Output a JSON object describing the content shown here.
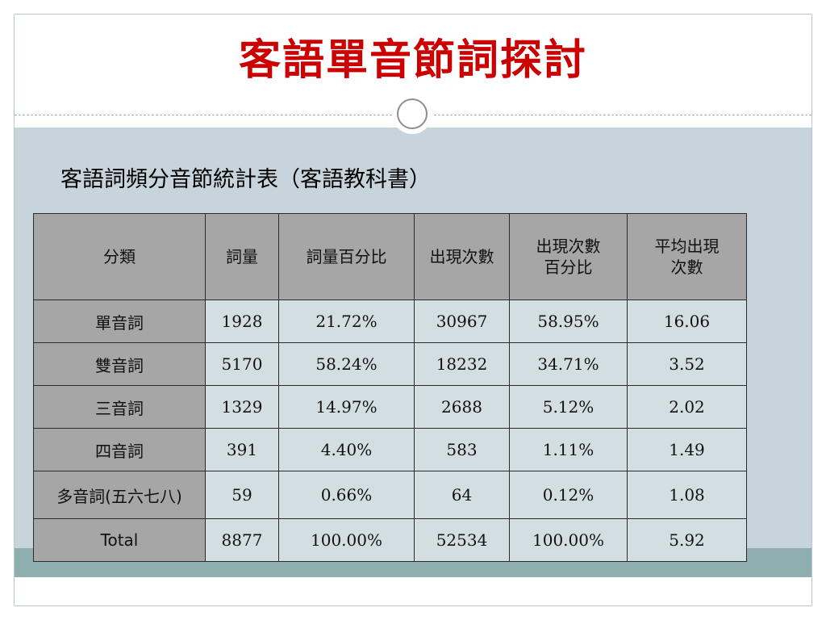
{
  "slide": {
    "title": "客語單音節詞探討",
    "subtitle": "客語詞頻分音節統計表（客語教科書）"
  },
  "table": {
    "headers": [
      "分類",
      "詞量",
      "詞量百分比",
      "出現次數",
      "出現次數\n百分比",
      "平均出現\n次數"
    ],
    "rows": [
      {
        "label": "單音詞",
        "cells": [
          "1928",
          "21.72%",
          "30967",
          "58.95%",
          "16.06"
        ]
      },
      {
        "label": "雙音詞",
        "cells": [
          "5170",
          "58.24%",
          "18232",
          "34.71%",
          "3.52"
        ]
      },
      {
        "label": "三音詞",
        "cells": [
          "1329",
          "14.97%",
          "2688",
          "5.12%",
          "2.02"
        ]
      },
      {
        "label": "四音詞",
        "cells": [
          "391",
          "4.40%",
          "583",
          "1.11%",
          "1.49"
        ]
      },
      {
        "label": "多音詞(五六七八)",
        "cells": [
          "59",
          "0.66%",
          "64",
          "0.12%",
          "1.08"
        ]
      },
      {
        "label": "Total",
        "cells": [
          "8877",
          "100.00%",
          "52534",
          "100.00%",
          "5.92"
        ]
      }
    ]
  },
  "colors": {
    "title": "#cc0000",
    "content_background": "#c7d4db",
    "footer_band": "#8faeb0",
    "header_cell": "#a6a6a6",
    "data_cell": "#d3dee3"
  }
}
